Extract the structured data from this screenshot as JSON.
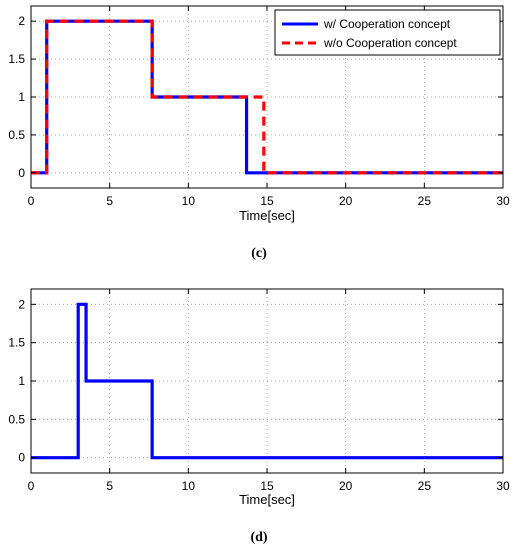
{
  "chart_data": [
    {
      "type": "line",
      "caption": "(c)",
      "xlabel": "Time[sec]",
      "ylabel": "",
      "xlim": [
        0,
        30
      ],
      "ylim": [
        -0.2,
        2.2
      ],
      "xticks": [
        0,
        5,
        10,
        15,
        20,
        25,
        30
      ],
      "yticks": [
        0,
        0.5,
        1,
        1.5,
        2
      ],
      "xtick_labels": [
        "0",
        "5",
        "10",
        "15",
        "20",
        "25",
        "30"
      ],
      "ytick_labels": [
        "0",
        "0.5",
        "1",
        "1.5",
        "2"
      ],
      "grid": true,
      "legend_position": "top-right",
      "series": [
        {
          "name": "w/ Cooperation concept",
          "color": "#0000ff",
          "style": "solid",
          "x": [
            0,
            1,
            1,
            7.7,
            7.7,
            13.7,
            13.7,
            30
          ],
          "y": [
            0,
            0,
            2,
            2,
            1,
            1,
            0,
            0
          ]
        },
        {
          "name": "w/o Cooperation concept",
          "color": "#ff0000",
          "style": "dashed",
          "x": [
            0,
            1,
            1,
            7.7,
            7.7,
            14.8,
            14.8,
            30
          ],
          "y": [
            0,
            0,
            2,
            2,
            1,
            1,
            0,
            0
          ]
        }
      ]
    },
    {
      "type": "line",
      "caption": "(d)",
      "xlabel": "Time[sec]",
      "ylabel": "",
      "xlim": [
        0,
        30
      ],
      "ylim": [
        -0.2,
        2.2
      ],
      "xticks": [
        0,
        5,
        10,
        15,
        20,
        25,
        30
      ],
      "yticks": [
        0,
        0.5,
        1,
        1.5,
        2
      ],
      "xtick_labels": [
        "0",
        "5",
        "10",
        "15",
        "20",
        "25",
        "30"
      ],
      "ytick_labels": [
        "0",
        "0.5",
        "1",
        "1.5",
        "2"
      ],
      "grid": true,
      "series": [
        {
          "color": "#0000ff",
          "style": "solid",
          "x": [
            0,
            3,
            3,
            3.5,
            3.5,
            7.7,
            7.7,
            30
          ],
          "y": [
            0,
            0,
            2,
            2,
            1,
            1,
            0,
            0
          ]
        }
      ]
    }
  ]
}
